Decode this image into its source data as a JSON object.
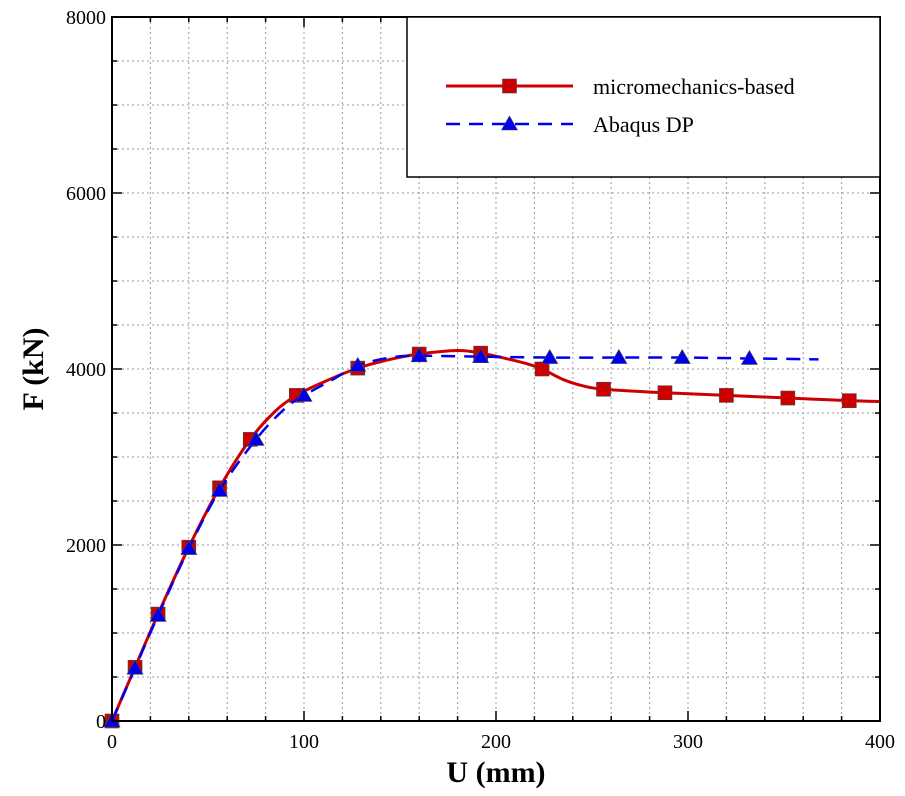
{
  "chart_data": {
    "type": "line",
    "xlabel": "U (mm)",
    "ylabel": "F (kN)",
    "xlim": [
      0,
      400
    ],
    "ylim": [
      0,
      8000
    ],
    "x_ticks": [
      "0",
      "100",
      "200",
      "300",
      "400"
    ],
    "y_ticks": [
      "0",
      "2000",
      "4000",
      "6000",
      "8000"
    ],
    "x_minor_step": 20,
    "y_minor_step": 500,
    "grid": true,
    "legend_position": "top-right",
    "series": [
      {
        "name": "micromechanics-based",
        "color": "#cc0000",
        "line_style": "solid",
        "marker": "square",
        "curve": [
          [
            0,
            0
          ],
          [
            12,
            610
          ],
          [
            24,
            1215
          ],
          [
            40,
            1975
          ],
          [
            56,
            2650
          ],
          [
            72,
            3200
          ],
          [
            85,
            3520
          ],
          [
            96,
            3700
          ],
          [
            110,
            3850
          ],
          [
            128,
            4010
          ],
          [
            145,
            4110
          ],
          [
            160,
            4170
          ],
          [
            180,
            4210
          ],
          [
            192,
            4180
          ],
          [
            205,
            4120
          ],
          [
            216,
            4060
          ],
          [
            224,
            4000
          ],
          [
            235,
            3880
          ],
          [
            245,
            3810
          ],
          [
            256,
            3770
          ],
          [
            288,
            3730
          ],
          [
            320,
            3700
          ],
          [
            352,
            3670
          ],
          [
            384,
            3640
          ],
          [
            400,
            3630
          ]
        ],
        "markers": [
          [
            0,
            0
          ],
          [
            12,
            610
          ],
          [
            24,
            1215
          ],
          [
            40,
            1975
          ],
          [
            56,
            2650
          ],
          [
            72,
            3200
          ],
          [
            96,
            3700
          ],
          [
            128,
            4010
          ],
          [
            160,
            4170
          ],
          [
            192,
            4180
          ],
          [
            224,
            4000
          ],
          [
            256,
            3770
          ],
          [
            288,
            3730
          ],
          [
            320,
            3700
          ],
          [
            352,
            3670
          ],
          [
            384,
            3640
          ]
        ]
      },
      {
        "name": "Abaqus DP",
        "color": "#0000ee",
        "line_style": "dashed",
        "marker": "triangle",
        "curve": [
          [
            0,
            0
          ],
          [
            12,
            600
          ],
          [
            24,
            1200
          ],
          [
            40,
            1960
          ],
          [
            56,
            2620
          ],
          [
            75,
            3200
          ],
          [
            90,
            3550
          ],
          [
            100,
            3700
          ],
          [
            115,
            3880
          ],
          [
            128,
            4040
          ],
          [
            145,
            4130
          ],
          [
            160,
            4150
          ],
          [
            192,
            4140
          ],
          [
            228,
            4130
          ],
          [
            264,
            4130
          ],
          [
            297,
            4130
          ],
          [
            332,
            4120
          ],
          [
            368,
            4110
          ]
        ],
        "markers": [
          [
            0,
            0
          ],
          [
            12,
            600
          ],
          [
            24,
            1200
          ],
          [
            40,
            1960
          ],
          [
            56,
            2620
          ],
          [
            75,
            3200
          ],
          [
            100,
            3700
          ],
          [
            128,
            4040
          ],
          [
            160,
            4150
          ],
          [
            192,
            4140
          ],
          [
            228,
            4130
          ],
          [
            264,
            4130
          ],
          [
            297,
            4130
          ],
          [
            332,
            4120
          ]
        ]
      }
    ]
  }
}
